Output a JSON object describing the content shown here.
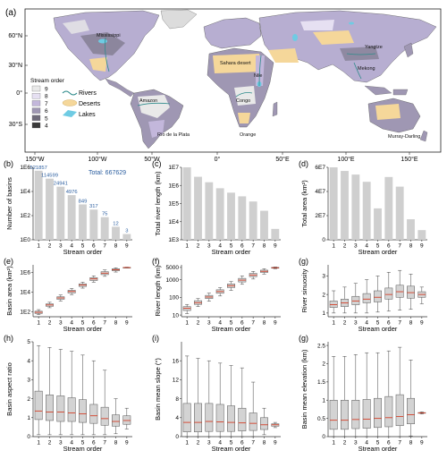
{
  "map": {
    "label": "(a)",
    "lat_labels": [
      "60°N",
      "30°N",
      "0°",
      "30°S"
    ],
    "lon_labels": [
      "150°W",
      "100°W",
      "50°W",
      "0°",
      "50°E",
      "100°E",
      "150°E"
    ],
    "legend": {
      "title": "Stream order",
      "items": [
        {
          "label": "9",
          "color": "#e9e9e9"
        },
        {
          "label": "8",
          "color": "#e6e0f2"
        },
        {
          "label": "7",
          "color": "#c3b7db"
        },
        {
          "label": "6",
          "color": "#9f97b3"
        },
        {
          "label": "5",
          "color": "#6f6b7a"
        },
        {
          "label": "4",
          "color": "#3a3a3a"
        }
      ],
      "features": [
        {
          "label": "Rivers",
          "color": "#2e8b8b"
        },
        {
          "label": "Deserts",
          "color": "#f5d79a"
        },
        {
          "label": "Lakes",
          "color": "#6fcbe3"
        }
      ]
    },
    "places": [
      "Mississippi",
      "Amazon",
      "Río de la Plata",
      "Sahara desert",
      "Nile",
      "Congo",
      "Orange",
      "Yangtze",
      "Mekong",
      "Murray-Darling"
    ]
  },
  "chart_data": [
    {
      "id": "b",
      "type": "bar",
      "panel_label": "(b)",
      "ylabel": "Number of basins",
      "xlabel": "Stream order",
      "categories": [
        "1",
        "2",
        "3",
        "4",
        "5",
        "6",
        "7",
        "8",
        "9"
      ],
      "values": [
        521857,
        114599,
        24941,
        4976,
        849,
        317,
        75,
        12,
        3
      ],
      "data_labels": [
        "521857",
        "114599",
        "24941",
        "4976",
        "849",
        "317",
        "75",
        "12",
        "3"
      ],
      "annotation": "Total: 667629",
      "yscale": "log",
      "ylim": [
        1,
        1000000
      ],
      "ytick_values": [
        1,
        100,
        10000,
        1000000
      ],
      "yticks": [
        "1E0",
        "1E2",
        "1E4",
        "1E6"
      ]
    },
    {
      "id": "c",
      "type": "bar",
      "panel_label": "(c)",
      "ylabel": "Total river length (km)",
      "xlabel": "Stream order",
      "categories": [
        "1",
        "2",
        "3",
        "4",
        "5",
        "6",
        "7",
        "8",
        "9"
      ],
      "values": [
        10000000,
        3000000,
        1500000,
        700000,
        400000,
        250000,
        130000,
        40000,
        4000
      ],
      "yscale": "log",
      "ylim": [
        1000,
        10000000
      ],
      "ytick_values": [
        1000,
        10000,
        100000,
        1000000,
        10000000
      ],
      "yticks": [
        "1E3",
        "1E4",
        "1E5",
        "1E6",
        "1E7"
      ]
    },
    {
      "id": "d",
      "type": "bar",
      "panel_label": "(d)",
      "ylabel": "Total area (km²)",
      "xlabel": "Stream order",
      "categories": [
        "1",
        "2",
        "3",
        "4",
        "5",
        "6",
        "7",
        "8",
        "9"
      ],
      "values": [
        60000000,
        57000000,
        54000000,
        48000000,
        26000000,
        52000000,
        44000000,
        17000000,
        8000000
      ],
      "yscale": "linear",
      "ylim": [
        0,
        60000000
      ],
      "ytick_values": [
        0,
        20000000,
        40000000,
        60000000
      ],
      "yticks": [
        "0",
        "2E7",
        "4E7",
        "6E7"
      ]
    },
    {
      "id": "e",
      "type": "box",
      "panel_label": "(e)",
      "ylabel": "Basin area (km²)",
      "xlabel": "Stream order",
      "categories": [
        "1",
        "2",
        "3",
        "4",
        "5",
        "6",
        "7",
        "8",
        "9"
      ],
      "yscale": "log",
      "ylim": [
        30,
        6000000
      ],
      "ytick_values": [
        100,
        10000,
        1000000
      ],
      "yticks": [
        "1E2",
        "1E4",
        "1E6"
      ],
      "boxes": [
        [
          50,
          65,
          85,
          110,
          160
        ],
        [
          250,
          350,
          480,
          620,
          900
        ],
        [
          1200,
          1800,
          2500,
          3300,
          5000
        ],
        [
          5500,
          8000,
          11500,
          15000,
          23000
        ],
        [
          25000,
          37000,
          52000,
          70000,
          100000
        ],
        [
          100000,
          150000,
          220000,
          300000,
          450000
        ],
        [
          400000,
          600000,
          850000,
          1200000,
          1800000
        ],
        [
          1100000,
          1500000,
          1900000,
          2400000,
          3000000
        ],
        [
          2800000,
          3000000,
          3200000,
          3300000,
          3500000
        ]
      ]
    },
    {
      "id": "f",
      "type": "box",
      "panel_label": "(f)",
      "ylabel": "River length (km)",
      "xlabel": "Stream order",
      "categories": [
        "1",
        "2",
        "3",
        "4",
        "5",
        "6",
        "7",
        "8",
        "9"
      ],
      "yscale": "log",
      "ylim": [
        8,
        7000
      ],
      "ytick_values": [
        10,
        100,
        1000,
        5000
      ],
      "yticks": [
        "10",
        "100",
        "1000",
        "5000"
      ],
      "boxes": [
        [
          12,
          18,
          24,
          30,
          40
        ],
        [
          30,
          40,
          50,
          65,
          85
        ],
        [
          60,
          85,
          105,
          130,
          175
        ],
        [
          120,
          170,
          215,
          270,
          360
        ],
        [
          250,
          360,
          460,
          580,
          780
        ],
        [
          550,
          750,
          950,
          1200,
          1650
        ],
        [
          1100,
          1500,
          1850,
          2300,
          3000
        ],
        [
          2100,
          2600,
          3000,
          3500,
          4200
        ],
        [
          4200,
          4500,
          4800,
          5000,
          5300
        ]
      ]
    },
    {
      "id": "g",
      "type": "box",
      "panel_label": "(g)",
      "ylabel": "River sinuosity",
      "xlabel": "Stream order",
      "categories": [
        "1",
        "2",
        "3",
        "4",
        "5",
        "6",
        "7",
        "8",
        "9"
      ],
      "yscale": "linear",
      "ylim": [
        0.8,
        3.6
      ],
      "ytick_values": [
        1,
        2,
        3
      ],
      "yticks": [
        "1",
        "2",
        "3"
      ],
      "boxes": [
        [
          1.0,
          1.3,
          1.45,
          1.65,
          2.2
        ],
        [
          1.0,
          1.35,
          1.55,
          1.75,
          2.4
        ],
        [
          1.0,
          1.45,
          1.65,
          1.9,
          2.6
        ],
        [
          1.0,
          1.55,
          1.75,
          2.05,
          2.8
        ],
        [
          1.05,
          1.6,
          1.85,
          2.2,
          3.0
        ],
        [
          1.1,
          1.75,
          2.0,
          2.35,
          3.2
        ],
        [
          1.15,
          1.85,
          2.15,
          2.5,
          3.3
        ],
        [
          1.2,
          1.8,
          2.1,
          2.45,
          3.1
        ],
        [
          1.5,
          1.85,
          2.0,
          2.15,
          2.4
        ]
      ]
    },
    {
      "id": "h",
      "type": "box",
      "panel_label": "(h)",
      "ylabel": "Basin aspect ratio",
      "xlabel": "Stream order",
      "categories": [
        "1",
        "2",
        "3",
        "4",
        "5",
        "6",
        "7",
        "8",
        "9"
      ],
      "yscale": "linear",
      "ylim": [
        0,
        5
      ],
      "ytick_values": [
        0,
        1,
        2,
        3,
        4,
        5
      ],
      "yticks": [
        "0",
        "1",
        "2",
        "3",
        "4",
        "5"
      ],
      "boxes": [
        [
          0.1,
          0.9,
          1.35,
          2.4,
          4.8
        ],
        [
          0.1,
          0.85,
          1.3,
          2.2,
          4.7
        ],
        [
          0.1,
          0.8,
          1.3,
          2.15,
          4.6
        ],
        [
          0.1,
          0.8,
          1.25,
          2.05,
          4.5
        ],
        [
          0.1,
          0.75,
          1.2,
          1.95,
          4.3
        ],
        [
          0.1,
          0.7,
          1.1,
          1.7,
          4.0
        ],
        [
          0.1,
          0.6,
          0.95,
          1.55,
          3.5
        ],
        [
          0.15,
          0.55,
          0.8,
          1.15,
          2.0
        ],
        [
          0.4,
          0.65,
          0.85,
          1.1,
          1.5
        ]
      ]
    },
    {
      "id": "i",
      "type": "box",
      "panel_label": "(i)",
      "ylabel": "Basin mean slope (°)",
      "xlabel": "Stream order",
      "categories": [
        "1",
        "2",
        "3",
        "4",
        "5",
        "6",
        "7",
        "8",
        "9"
      ],
      "yscale": "linear",
      "ylim": [
        0,
        20
      ],
      "ytick_values": [
        0,
        4,
        8,
        12,
        16
      ],
      "yticks": [
        "0",
        "4",
        "8",
        "12",
        "16"
      ],
      "boxes": [
        [
          0,
          1,
          3,
          7,
          17
        ],
        [
          0,
          1,
          3,
          7,
          16.5
        ],
        [
          0,
          1.1,
          3.2,
          7,
          16
        ],
        [
          0,
          1.1,
          3.1,
          6.8,
          15.5
        ],
        [
          0,
          1.1,
          3,
          6.5,
          15
        ],
        [
          0,
          1.2,
          2.9,
          6,
          14.5
        ],
        [
          0,
          1.3,
          2.8,
          5,
          11.5
        ],
        [
          0.4,
          1.5,
          2.5,
          4,
          6
        ],
        [
          1.9,
          2.2,
          2.5,
          2.7,
          3
        ]
      ]
    },
    {
      "id": "g2",
      "type": "box",
      "panel_label": "(g)",
      "ylabel": "Basin mean elevation (km)",
      "xlabel": "Stream order",
      "categories": [
        "1",
        "2",
        "3",
        "4",
        "5",
        "6",
        "7",
        "8",
        "9"
      ],
      "yscale": "linear",
      "ylim": [
        0,
        2.6
      ],
      "ytick_values": [
        0,
        0.5,
        1,
        1.5,
        2,
        2.5
      ],
      "yticks": [
        "0",
        "0.5",
        "1",
        "1.5",
        "2",
        "2.5"
      ],
      "boxes": [
        [
          0,
          0.2,
          0.45,
          1.0,
          2.2
        ],
        [
          0,
          0.2,
          0.45,
          1.0,
          2.2
        ],
        [
          0,
          0.22,
          0.47,
          1.0,
          2.25
        ],
        [
          0,
          0.23,
          0.48,
          1.02,
          2.3
        ],
        [
          0,
          0.25,
          0.5,
          1.05,
          2.3
        ],
        [
          0,
          0.27,
          0.52,
          1.1,
          2.35
        ],
        [
          0,
          0.3,
          0.55,
          1.15,
          2.45
        ],
        [
          0.02,
          0.35,
          0.6,
          1.05,
          2.1
        ],
        [
          0.62,
          0.64,
          0.65,
          0.66,
          0.68
        ]
      ]
    }
  ]
}
